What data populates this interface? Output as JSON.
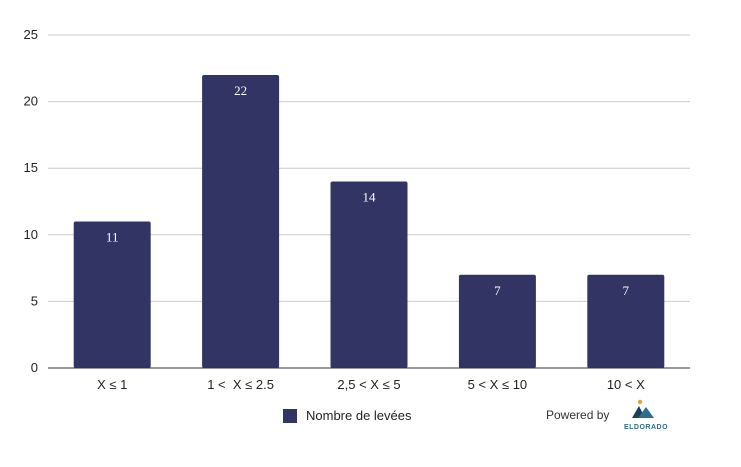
{
  "chart_data": {
    "type": "bar",
    "categories": [
      "X ≤ 1",
      "1 <  X ≤ 2.5",
      "2,5 < X ≤ 5",
      "5 < X ≤ 10",
      "10 < X"
    ],
    "series": [
      {
        "name": "Nombre de levées",
        "values": [
          11,
          22,
          14,
          7,
          7
        ]
      }
    ],
    "ylim": [
      0,
      25
    ],
    "yticks": [
      0,
      5,
      10,
      15,
      20,
      25
    ],
    "grid": true,
    "legend_position": "bottom",
    "data_labels": true,
    "bar_color": "#323463"
  },
  "branding": {
    "powered_by": "Powered by",
    "logo_text": "ELDORADO",
    "logo_color": "#2a6f8f",
    "logo_dot_color": "#e0a43a"
  }
}
